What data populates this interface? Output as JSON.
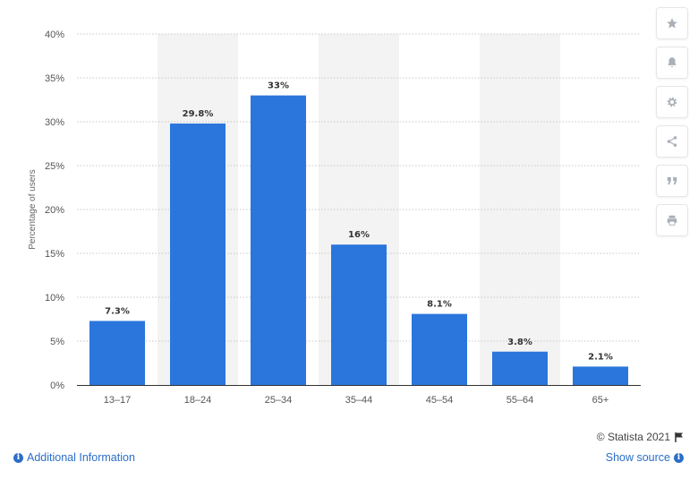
{
  "chart_data": {
    "type": "bar",
    "categories": [
      "13-17",
      "18-24",
      "25-34",
      "35-44",
      "45-54",
      "55-64",
      "65+"
    ],
    "values": [
      7.3,
      29.8,
      33,
      16,
      8.1,
      3.8,
      2.1
    ],
    "value_labels": [
      "7.3%",
      "29.8%",
      "33%",
      "16%",
      "8.1%",
      "3.8%",
      "2.1%"
    ],
    "ylabel": "Percentage of users",
    "ylim": [
      0,
      40
    ],
    "yticks": [
      0,
      5,
      10,
      15,
      20,
      25,
      30,
      35,
      40
    ],
    "ytick_labels": [
      "0%",
      "5%",
      "10%",
      "15%",
      "20%",
      "25%",
      "30%",
      "35%",
      "40%"
    ],
    "grid": true,
    "bar_color": "#2a76dd",
    "band_color": "#f3f3f3"
  },
  "toolbar": {
    "buttons": [
      {
        "name": "favorite-button",
        "icon": "star-icon"
      },
      {
        "name": "notification-button",
        "icon": "bell-icon"
      },
      {
        "name": "settings-button",
        "icon": "gear-icon"
      },
      {
        "name": "share-button",
        "icon": "share-icon"
      },
      {
        "name": "cite-button",
        "icon": "quote-icon"
      },
      {
        "name": "print-button",
        "icon": "print-icon"
      }
    ]
  },
  "footer": {
    "credit": "© Statista 2021",
    "additional_info": "Additional Information",
    "show_source": "Show source"
  }
}
